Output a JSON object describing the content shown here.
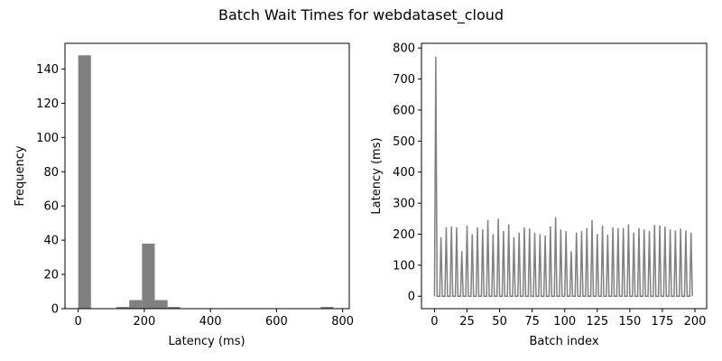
{
  "figure": {
    "title": "Batch Wait Times for webdataset_cloud"
  },
  "colors": {
    "bar": "#808080",
    "line": "#808080",
    "axis": "#000000"
  },
  "chart_data": [
    {
      "type": "bar",
      "subtype": "histogram",
      "title": "",
      "xlabel": "Latency (ms)",
      "ylabel": "Frequency",
      "xlim": [
        -40,
        820
      ],
      "ylim": [
        0,
        155
      ],
      "xticks": [
        0,
        200,
        400,
        600,
        800
      ],
      "yticks": [
        0,
        20,
        40,
        60,
        80,
        100,
        120,
        140
      ],
      "bins": [
        {
          "x0": 0,
          "x1": 38.6,
          "count": 148
        },
        {
          "x0": 115.8,
          "x1": 154.4,
          "count": 1
        },
        {
          "x0": 154.4,
          "x1": 193.0,
          "count": 5
        },
        {
          "x0": 193.0,
          "x1": 231.6,
          "count": 38
        },
        {
          "x0": 231.6,
          "x1": 270.2,
          "count": 5
        },
        {
          "x0": 270.2,
          "x1": 308.8,
          "count": 1
        },
        {
          "x0": 733.4,
          "x1": 772.0,
          "count": 1
        }
      ],
      "grid": false
    },
    {
      "type": "line",
      "title": "",
      "xlabel": "Batch index",
      "ylabel": "Latency (ms)",
      "xlim": [
        -10,
        209
      ],
      "ylim": [
        -40,
        815
      ],
      "xticks": [
        0,
        25,
        50,
        75,
        100,
        125,
        150,
        175,
        200
      ],
      "yticks": [
        0,
        100,
        200,
        300,
        400,
        500,
        600,
        700,
        800
      ],
      "peak_period": 4,
      "peak_offset": 1,
      "n_points": 199,
      "peaks": [
        772,
        190,
        222,
        225,
        222,
        145,
        228,
        200,
        222,
        215,
        245,
        200,
        250,
        210,
        232,
        190,
        205,
        222,
        218,
        205,
        200,
        195,
        225,
        255,
        215,
        210,
        145,
        205,
        210,
        220,
        245,
        200,
        228,
        198,
        222,
        220,
        220,
        232,
        205,
        220,
        215,
        210,
        230,
        228,
        225,
        215,
        212,
        218,
        212,
        205
      ],
      "baseline": 0,
      "grid": false
    }
  ]
}
